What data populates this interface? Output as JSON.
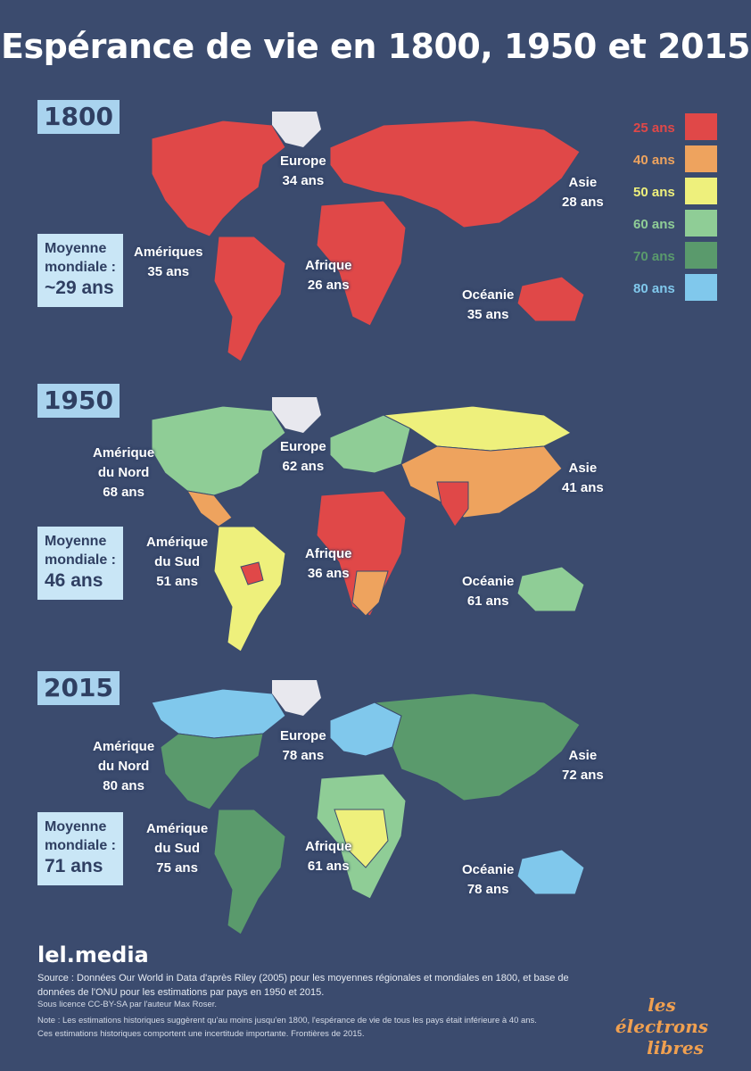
{
  "title": "Espérance de vie en 1800, 1950 et 2015",
  "legend": [
    {
      "label": "25 ans",
      "color": "#e04848"
    },
    {
      "label": "40 ans",
      "color": "#eea35e"
    },
    {
      "label": "50 ans",
      "color": "#eef07c"
    },
    {
      "label": "60 ans",
      "color": "#8fcd96"
    },
    {
      "label": "70 ans",
      "color": "#5a9a6c"
    },
    {
      "label": "80 ans",
      "color": "#80c8ec"
    }
  ],
  "panels": [
    {
      "year": "1800",
      "avg": {
        "l1": "Moyenne",
        "l2": "mondiale :",
        "val": "~29 ans"
      },
      "regions": {
        "americas": {
          "name": "Amériques",
          "val": "35 ans",
          "color": "#e04848"
        },
        "europe": {
          "name": "Europe",
          "val": "34 ans",
          "color": "#e04848"
        },
        "africa": {
          "name": "Afrique",
          "val": "26 ans",
          "color": "#e04848"
        },
        "asia": {
          "name": "Asie",
          "val": "28 ans",
          "color": "#e04848"
        },
        "oceania": {
          "name": "Océanie",
          "val": "35 ans",
          "color": "#e04848"
        }
      }
    },
    {
      "year": "1950",
      "avg": {
        "l1": "Moyenne",
        "l2": "mondiale :",
        "val": "46 ans"
      },
      "regions": {
        "na": {
          "l1": "Amérique",
          "l2": "du Nord",
          "val": "68 ans",
          "color": "#8fcd96"
        },
        "sa": {
          "l1": "Amérique",
          "l2": "du Sud",
          "val": "51 ans",
          "color": "#eef07c"
        },
        "europe": {
          "name": "Europe",
          "val": "62 ans",
          "color": "#8fcd96"
        },
        "africa": {
          "name": "Afrique",
          "val": "36 ans",
          "color": "#e04848"
        },
        "asia": {
          "name": "Asie",
          "val": "41 ans",
          "color": "#eea35e"
        },
        "oceania": {
          "name": "Océanie",
          "val": "61 ans",
          "color": "#8fcd96"
        }
      }
    },
    {
      "year": "2015",
      "avg": {
        "l1": "Moyenne",
        "l2": "mondiale :",
        "val": "71 ans"
      },
      "regions": {
        "na": {
          "l1": "Amérique",
          "l2": "du Nord",
          "val": "80 ans",
          "color": "#5a9a6c"
        },
        "sa": {
          "l1": "Amérique",
          "l2": "du Sud",
          "val": "75 ans",
          "color": "#5a9a6c"
        },
        "europe": {
          "name": "Europe",
          "val": "78 ans",
          "color": "#80c8ec"
        },
        "africa": {
          "name": "Afrique",
          "val": "61 ans",
          "color": "#8fcd96"
        },
        "asia": {
          "name": "Asie",
          "val": "72 ans",
          "color": "#5a9a6c"
        },
        "oceania": {
          "name": "Océanie",
          "val": "78 ans",
          "color": "#80c8ec"
        }
      }
    }
  ],
  "footer": {
    "site": "lel.media",
    "source": "Source : Données Our World in Data d'après Riley (2005) pour les moyennes régionales et mondiales en 1800, et base de données de l'ONU pour les estimations par pays en 1950 et 2015.",
    "license": "Sous licence CC-BY-SA par l'auteur Max Roser.",
    "note": "Note : Les estimations historiques suggèrent qu'au moins jusqu'en 1800, l'espérance de vie de tous les pays était inférieure à 40 ans. Ces estimations historiques comportent une incertitude importante. Frontières de 2015.",
    "logo_l1": "les électrons",
    "logo_l2": "libres"
  },
  "colors": {
    "background": "#3b4b6e",
    "greenland": "#e8e8ee",
    "year_box": "#a9d3ee",
    "avg_box": "#c9e6f6"
  }
}
